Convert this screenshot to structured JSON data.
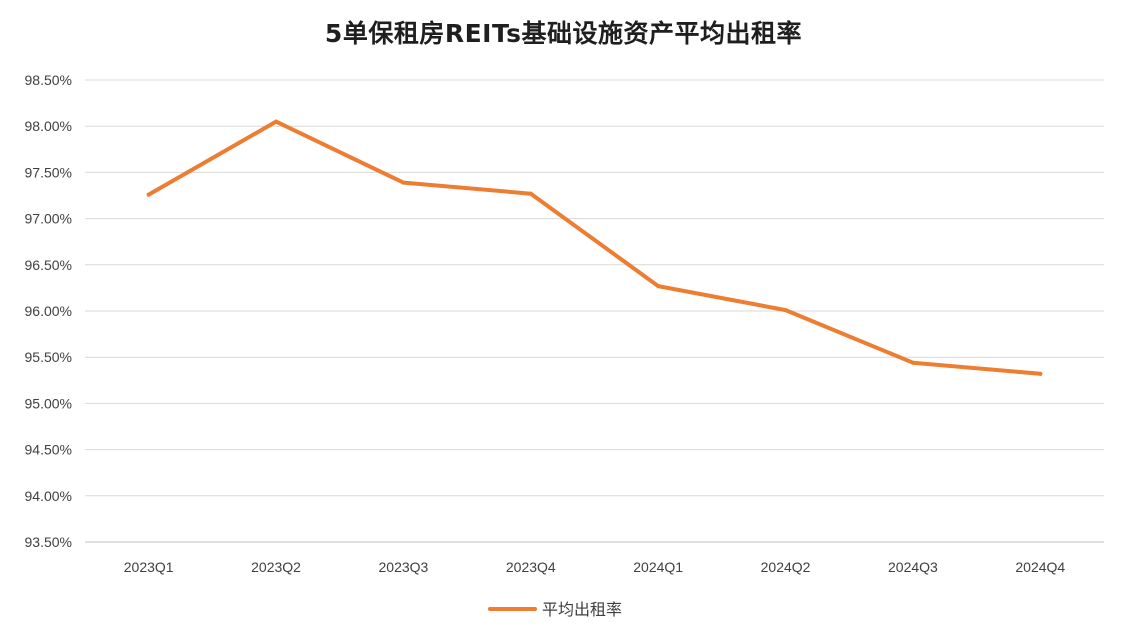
{
  "chart_data": {
    "type": "line",
    "title": "5单保租房REITs基础设施资产平均出租率",
    "xlabel": "",
    "ylabel": "",
    "categories": [
      "2023Q1",
      "2023Q2",
      "2023Q3",
      "2023Q4",
      "2024Q1",
      "2024Q2",
      "2024Q3",
      "2024Q4"
    ],
    "series": [
      {
        "name": "平均出租率",
        "values": [
          97.26,
          98.05,
          97.39,
          97.27,
          96.27,
          96.01,
          95.44,
          95.32
        ],
        "color": "#ED7D31"
      }
    ],
    "ylim": [
      93.5,
      98.5
    ],
    "yticks": [
      93.5,
      94.0,
      94.5,
      95.0,
      95.5,
      96.0,
      96.5,
      97.0,
      97.5,
      98.0,
      98.5
    ],
    "ytick_labels": [
      "93.50%",
      "94.00%",
      "94.50%",
      "95.00%",
      "95.50%",
      "96.00%",
      "96.50%",
      "97.00%",
      "97.50%",
      "98.00%",
      "98.50%"
    ],
    "grid": true,
    "legend_position": "bottom"
  }
}
